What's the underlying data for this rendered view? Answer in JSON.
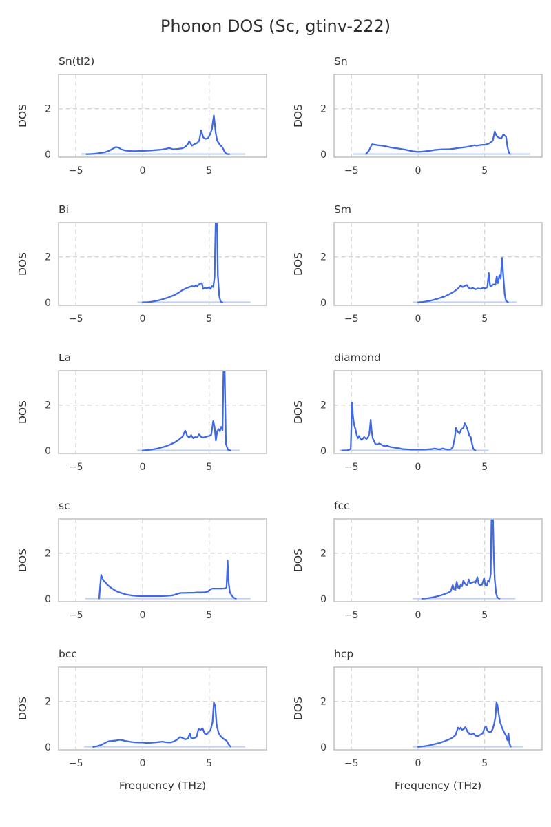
{
  "figure": {
    "title": "Phonon DOS (Sc, gtinv-222)",
    "xlabel": "Frequency (THz)",
    "ylabel": "DOS"
  },
  "style": {
    "line_color": "#4169e1",
    "baseline_color": "#c3d1f4",
    "grid_color": "#cfcfcf",
    "spine_color": "#c4c4c4",
    "text_color": "#333333"
  },
  "axes": {
    "xlim": [
      -6.3,
      9.3
    ],
    "ylim": [
      -0.12,
      3.5
    ],
    "xticks": [
      -5,
      0,
      5
    ],
    "yticks": [
      0,
      2
    ],
    "grid_y_values": [
      2
    ],
    "grid_dashed": true
  },
  "chart_data": [
    {
      "name": "Sn(tI2)",
      "type": "line",
      "baseline_range": [
        -4.6,
        7.7
      ],
      "x": [
        -4.2,
        -3.8,
        -3.4,
        -3.1,
        -2.8,
        -2.5,
        -2.2,
        -2.0,
        -1.8,
        -1.6,
        -1.3,
        -1.0,
        -0.6,
        -0.2,
        0.2,
        0.6,
        1.0,
        1.4,
        1.8,
        2.0,
        2.3,
        2.6,
        3.0,
        3.2,
        3.4,
        3.5,
        3.7,
        3.9,
        4.1,
        4.25,
        4.4,
        4.55,
        4.7,
        4.9,
        5.05,
        5.2,
        5.35,
        5.5,
        5.6,
        5.8,
        6.0,
        6.15,
        6.3,
        6.5
      ],
      "y": [
        0.01,
        0.02,
        0.04,
        0.07,
        0.1,
        0.16,
        0.26,
        0.32,
        0.3,
        0.22,
        0.17,
        0.15,
        0.14,
        0.15,
        0.16,
        0.17,
        0.19,
        0.21,
        0.25,
        0.28,
        0.22,
        0.24,
        0.27,
        0.33,
        0.45,
        0.58,
        0.38,
        0.45,
        0.5,
        0.6,
        1.05,
        0.75,
        0.68,
        0.7,
        0.85,
        1.1,
        1.7,
        0.9,
        0.6,
        0.42,
        0.3,
        0.12,
        0.02,
        0.01
      ]
    },
    {
      "name": "Sn",
      "type": "line",
      "baseline_range": [
        -4.9,
        8.4
      ],
      "x": [
        -3.9,
        -3.7,
        -3.45,
        -3.2,
        -3.0,
        -2.7,
        -2.4,
        -2.1,
        -1.8,
        -1.5,
        -1.2,
        -0.9,
        -0.6,
        -0.3,
        0.0,
        0.3,
        0.6,
        0.9,
        1.2,
        1.5,
        1.8,
        2.1,
        2.4,
        2.7,
        3.0,
        3.3,
        3.6,
        3.9,
        4.2,
        4.4,
        4.6,
        4.8,
        5.0,
        5.2,
        5.4,
        5.6,
        5.75,
        5.85,
        5.95,
        6.1,
        6.25,
        6.4,
        6.5,
        6.6,
        6.7,
        6.8,
        6.9
      ],
      "y": [
        0.02,
        0.15,
        0.44,
        0.42,
        0.4,
        0.38,
        0.35,
        0.31,
        0.28,
        0.26,
        0.23,
        0.2,
        0.16,
        0.13,
        0.11,
        0.12,
        0.14,
        0.16,
        0.19,
        0.21,
        0.22,
        0.22,
        0.23,
        0.25,
        0.28,
        0.3,
        0.32,
        0.35,
        0.4,
        0.38,
        0.4,
        0.42,
        0.42,
        0.45,
        0.5,
        0.6,
        1.0,
        0.85,
        0.78,
        0.72,
        0.7,
        0.88,
        0.82,
        0.78,
        0.35,
        0.1,
        0.02
      ]
    },
    {
      "name": "Bi",
      "type": "line",
      "baseline_range": [
        -0.4,
        8.1
      ],
      "x": [
        0.0,
        0.4,
        0.8,
        1.2,
        1.6,
        2.0,
        2.4,
        2.7,
        3.0,
        3.3,
        3.5,
        3.7,
        3.9,
        4.0,
        4.1,
        4.2,
        4.3,
        4.45,
        4.55,
        4.7,
        4.85,
        5.0,
        5.1,
        5.2,
        5.3,
        5.4,
        5.5,
        5.57,
        5.65,
        5.75,
        5.85,
        6.0
      ],
      "y": [
        0.01,
        0.02,
        0.05,
        0.1,
        0.16,
        0.24,
        0.33,
        0.43,
        0.55,
        0.63,
        0.68,
        0.72,
        0.7,
        0.76,
        0.72,
        0.78,
        0.82,
        0.85,
        0.6,
        0.65,
        0.62,
        0.68,
        0.6,
        0.72,
        0.68,
        1.1,
        3.9,
        3.9,
        1.2,
        0.3,
        0.05,
        0.01
      ]
    },
    {
      "name": "Sm",
      "type": "line",
      "baseline_range": [
        -0.4,
        7.4
      ],
      "x": [
        0.0,
        0.4,
        0.8,
        1.2,
        1.6,
        2.0,
        2.4,
        2.7,
        3.0,
        3.2,
        3.35,
        3.5,
        3.65,
        3.8,
        3.95,
        4.1,
        4.3,
        4.5,
        4.7,
        4.9,
        5.05,
        5.2,
        5.3,
        5.4,
        5.5,
        5.65,
        5.8,
        5.9,
        6.0,
        6.1,
        6.2,
        6.3,
        6.4,
        6.5,
        6.6,
        6.75
      ],
      "y": [
        0.01,
        0.03,
        0.07,
        0.12,
        0.19,
        0.27,
        0.38,
        0.48,
        0.62,
        0.75,
        0.68,
        0.73,
        0.77,
        0.65,
        0.6,
        0.65,
        0.58,
        0.62,
        0.6,
        0.65,
        0.62,
        0.68,
        1.3,
        0.75,
        0.72,
        0.8,
        0.78,
        1.15,
        0.85,
        1.2,
        1.05,
        1.95,
        1.1,
        0.35,
        0.08,
        0.01
      ]
    },
    {
      "name": "La",
      "type": "line",
      "baseline_range": [
        -0.4,
        7.3
      ],
      "x": [
        0.0,
        0.4,
        0.8,
        1.2,
        1.6,
        2.0,
        2.4,
        2.7,
        3.0,
        3.2,
        3.35,
        3.5,
        3.65,
        3.8,
        3.95,
        4.1,
        4.25,
        4.4,
        4.55,
        4.7,
        4.85,
        5.0,
        5.15,
        5.3,
        5.4,
        5.5,
        5.6,
        5.7,
        5.8,
        5.9,
        6.0,
        6.08,
        6.15,
        6.25,
        6.4,
        6.6
      ],
      "y": [
        0.01,
        0.03,
        0.06,
        0.11,
        0.17,
        0.25,
        0.36,
        0.47,
        0.62,
        0.88,
        0.65,
        0.58,
        0.68,
        0.55,
        0.6,
        0.58,
        0.72,
        0.6,
        0.58,
        0.6,
        0.63,
        0.65,
        0.7,
        1.3,
        1.05,
        0.45,
        0.85,
        0.95,
        0.85,
        1.05,
        0.9,
        3.9,
        3.9,
        0.3,
        0.05,
        0.01
      ]
    },
    {
      "name": "diamond",
      "type": "line",
      "baseline_range": [
        -5.9,
        5.3
      ],
      "x": [
        -5.7,
        -5.3,
        -5.05,
        -4.95,
        -4.88,
        -4.8,
        -4.7,
        -4.6,
        -4.5,
        -4.42,
        -4.35,
        -4.25,
        -4.15,
        -4.05,
        -3.95,
        -3.85,
        -3.75,
        -3.65,
        -3.55,
        -3.48,
        -3.4,
        -3.3,
        -3.2,
        -3.05,
        -2.9,
        -2.75,
        -2.6,
        -2.45,
        -2.3,
        -2.15,
        -2.0,
        -1.8,
        -1.6,
        -1.35,
        -1.1,
        -0.8,
        -0.5,
        -0.2,
        0.1,
        0.4,
        0.7,
        1.0,
        1.25,
        1.45,
        1.65,
        1.85,
        2.05,
        2.25,
        2.45,
        2.6,
        2.75,
        2.85,
        2.95,
        3.1,
        3.25,
        3.4,
        3.5,
        3.6,
        3.7,
        3.85,
        3.95,
        4.05,
        4.15,
        4.3
      ],
      "y": [
        0.01,
        0.02,
        0.08,
        2.1,
        1.5,
        1.15,
        0.95,
        0.68,
        0.55,
        0.65,
        0.55,
        0.48,
        0.52,
        0.6,
        0.55,
        0.52,
        0.6,
        0.75,
        1.35,
        0.85,
        0.55,
        0.42,
        0.3,
        0.27,
        0.32,
        0.27,
        0.22,
        0.2,
        0.22,
        0.18,
        0.16,
        0.14,
        0.12,
        0.1,
        0.07,
        0.06,
        0.05,
        0.05,
        0.05,
        0.05,
        0.06,
        0.07,
        0.1,
        0.07,
        0.06,
        0.1,
        0.07,
        0.05,
        0.06,
        0.15,
        0.55,
        1.0,
        0.85,
        0.75,
        0.95,
        1.0,
        1.2,
        1.1,
        0.95,
        0.65,
        0.6,
        0.3,
        0.08,
        0.01
      ]
    },
    {
      "name": "sc",
      "type": "line",
      "baseline_range": [
        -4.3,
        8.1
      ],
      "x": [
        -3.25,
        -3.18,
        -3.1,
        -3.0,
        -2.9,
        -2.8,
        -2.65,
        -2.5,
        -2.35,
        -2.2,
        -2.0,
        -1.8,
        -1.6,
        -1.4,
        -1.2,
        -1.0,
        -0.7,
        -0.4,
        -0.1,
        0.2,
        0.5,
        0.8,
        1.1,
        1.4,
        1.7,
        2.0,
        2.3,
        2.5,
        2.7,
        2.9,
        3.2,
        3.5,
        3.8,
        4.1,
        4.4,
        4.7,
        4.9,
        5.1,
        5.25,
        5.5,
        5.8,
        6.0,
        6.2,
        6.3,
        6.38,
        6.45,
        6.55,
        6.7,
        6.85,
        7.0
      ],
      "y": [
        0.02,
        0.55,
        1.05,
        0.88,
        0.78,
        0.73,
        0.62,
        0.55,
        0.48,
        0.42,
        0.35,
        0.3,
        0.26,
        0.22,
        0.19,
        0.17,
        0.14,
        0.13,
        0.12,
        0.12,
        0.12,
        0.12,
        0.12,
        0.12,
        0.13,
        0.14,
        0.16,
        0.2,
        0.24,
        0.26,
        0.26,
        0.27,
        0.27,
        0.28,
        0.28,
        0.29,
        0.32,
        0.42,
        0.45,
        0.45,
        0.45,
        0.45,
        0.46,
        0.5,
        1.68,
        0.75,
        0.28,
        0.14,
        0.05,
        0.01
      ]
    },
    {
      "name": "fcc",
      "type": "line",
      "baseline_range": [
        -0.4,
        7.3
      ],
      "x": [
        0.3,
        0.7,
        1.1,
        1.5,
        1.9,
        2.2,
        2.45,
        2.6,
        2.7,
        2.8,
        2.9,
        3.0,
        3.1,
        3.2,
        3.3,
        3.4,
        3.5,
        3.6,
        3.7,
        3.8,
        3.9,
        4.0,
        4.1,
        4.2,
        4.3,
        4.45,
        4.55,
        4.65,
        4.8,
        4.95,
        5.05,
        5.15,
        5.25,
        5.35,
        5.45,
        5.52,
        5.6,
        5.68,
        5.75,
        5.85,
        5.95,
        6.1
      ],
      "y": [
        0.01,
        0.03,
        0.07,
        0.12,
        0.19,
        0.26,
        0.33,
        0.6,
        0.42,
        0.4,
        0.75,
        0.5,
        0.45,
        0.62,
        0.55,
        0.8,
        0.68,
        0.62,
        0.6,
        0.85,
        0.68,
        0.7,
        0.72,
        0.75,
        0.7,
        0.95,
        0.65,
        0.6,
        0.62,
        0.9,
        0.6,
        0.58,
        0.8,
        0.75,
        1.1,
        3.9,
        3.9,
        1.9,
        0.85,
        0.25,
        0.06,
        0.01
      ]
    },
    {
      "name": "bcc",
      "type": "line",
      "baseline_range": [
        -4.4,
        7.7
      ],
      "x": [
        -3.7,
        -3.4,
        -3.1,
        -2.9,
        -2.7,
        -2.5,
        -2.3,
        -2.1,
        -1.9,
        -1.7,
        -1.5,
        -1.3,
        -1.1,
        -0.9,
        -0.6,
        -0.3,
        0.0,
        0.3,
        0.6,
        0.9,
        1.2,
        1.5,
        1.8,
        2.1,
        2.4,
        2.6,
        2.8,
        3.0,
        3.2,
        3.4,
        3.55,
        3.65,
        3.75,
        3.9,
        4.05,
        4.2,
        4.35,
        4.5,
        4.65,
        4.8,
        4.95,
        5.1,
        5.25,
        5.35,
        5.45,
        5.55,
        5.7,
        5.85,
        6.0,
        6.15,
        6.3,
        6.45,
        6.6
      ],
      "y": [
        0.01,
        0.04,
        0.09,
        0.15,
        0.22,
        0.26,
        0.27,
        0.28,
        0.3,
        0.32,
        0.3,
        0.27,
        0.25,
        0.23,
        0.21,
        0.2,
        0.2,
        0.18,
        0.19,
        0.2,
        0.22,
        0.24,
        0.21,
        0.2,
        0.26,
        0.33,
        0.44,
        0.4,
        0.34,
        0.37,
        0.6,
        0.4,
        0.38,
        0.4,
        0.45,
        0.8,
        0.75,
        0.82,
        0.6,
        0.55,
        0.65,
        0.75,
        1.1,
        1.95,
        1.8,
        1.0,
        0.62,
        0.48,
        0.4,
        0.33,
        0.28,
        0.12,
        0.02
      ]
    },
    {
      "name": "hcp",
      "type": "line",
      "baseline_range": [
        -0.4,
        7.9
      ],
      "x": [
        0.0,
        0.4,
        0.8,
        1.2,
        1.6,
        2.0,
        2.3,
        2.6,
        2.8,
        3.0,
        3.1,
        3.2,
        3.3,
        3.45,
        3.55,
        3.7,
        3.85,
        4.0,
        4.15,
        4.3,
        4.5,
        4.7,
        4.85,
        5.0,
        5.1,
        5.2,
        5.35,
        5.5,
        5.6,
        5.7,
        5.8,
        5.88,
        5.95,
        6.05,
        6.15,
        6.3,
        6.45,
        6.6,
        6.7,
        6.78,
        6.85,
        6.95
      ],
      "y": [
        0.01,
        0.03,
        0.07,
        0.12,
        0.18,
        0.26,
        0.33,
        0.42,
        0.52,
        0.85,
        0.78,
        0.85,
        0.75,
        0.8,
        0.88,
        0.68,
        0.58,
        0.55,
        0.6,
        0.5,
        0.48,
        0.55,
        0.6,
        0.85,
        0.9,
        0.72,
        0.65,
        0.68,
        0.8,
        1.0,
        1.3,
        1.95,
        1.85,
        1.45,
        1.1,
        0.85,
        0.65,
        0.5,
        0.3,
        0.6,
        0.15,
        0.02
      ]
    }
  ]
}
